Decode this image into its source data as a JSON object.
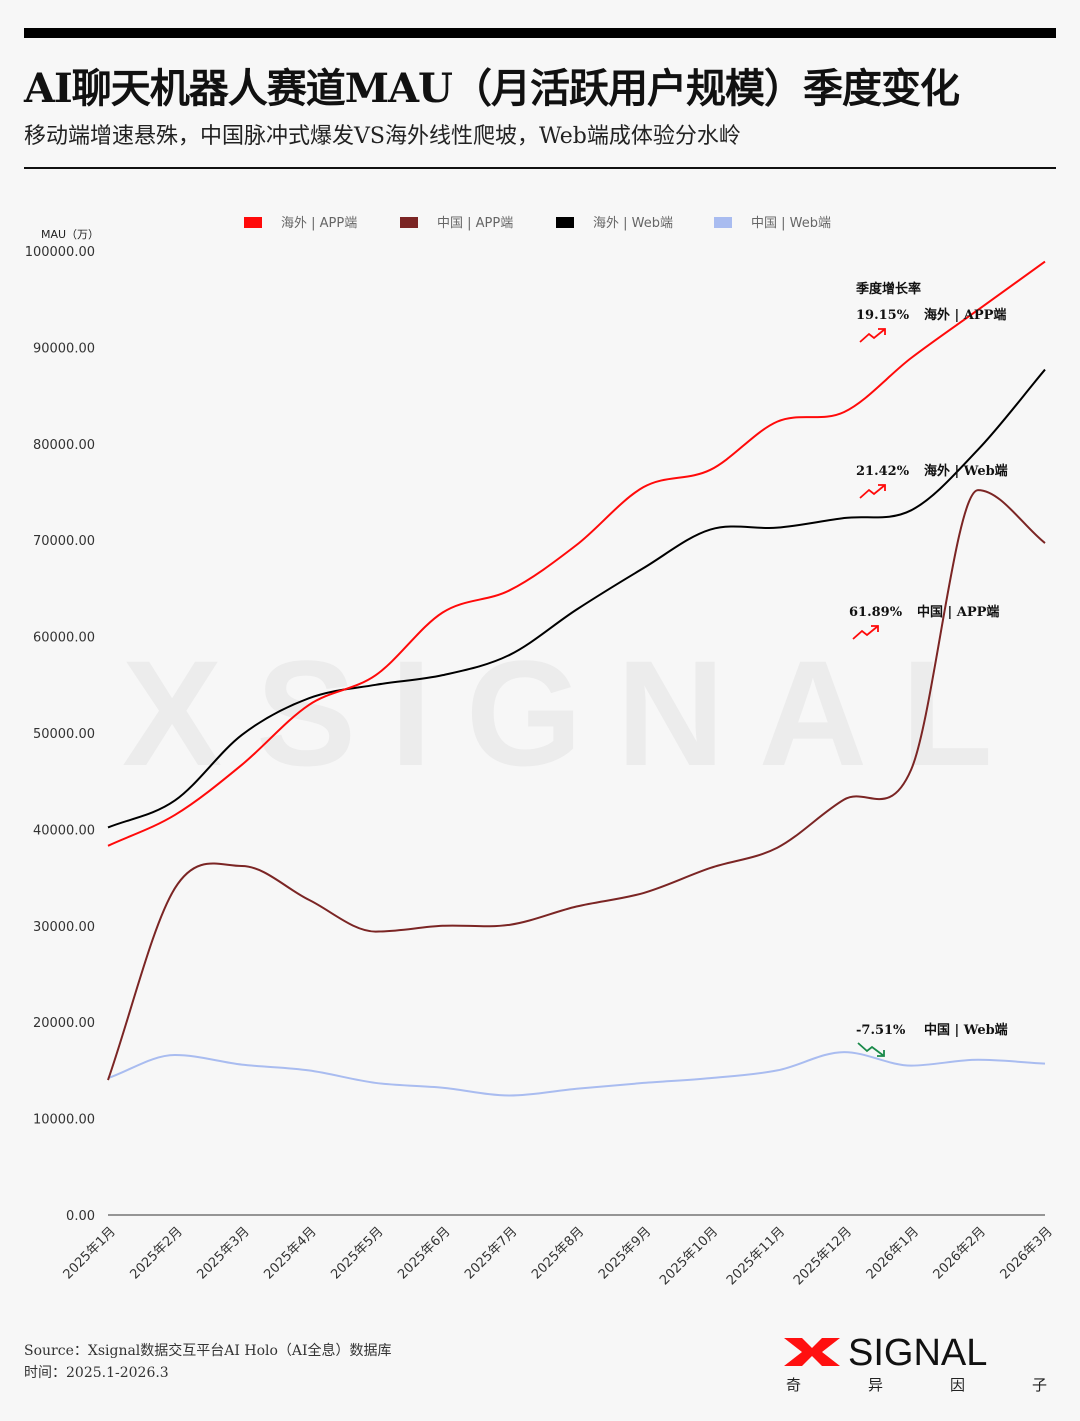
{
  "header": {
    "title": "AI聊天机器人赛道MAU（月活跃用户规模）季度变化",
    "subtitle": "移动端增速悬殊，中国脉冲式爆发VS海外线性爬坡，Web端成体验分水岭"
  },
  "chart_data": {
    "type": "line",
    "ylabel": "MAU（万）",
    "ylim": [
      0,
      100000
    ],
    "yticks": [
      "0.00",
      "10000.00",
      "20000.00",
      "30000.00",
      "40000.00",
      "50000.00",
      "60000.00",
      "70000.00",
      "80000.00",
      "90000.00",
      "100000.00"
    ],
    "ytick_values": [
      0,
      10000,
      20000,
      30000,
      40000,
      50000,
      60000,
      70000,
      80000,
      90000,
      100000
    ],
    "categories": [
      "2025年1月",
      "2025年2月",
      "2025年3月",
      "2025年4月",
      "2025年5月",
      "2025年6月",
      "2025年7月",
      "2025年8月",
      "2025年9月",
      "2025年10月",
      "2025年11月",
      "2025年12月",
      "2026年1月",
      "2026年2月",
      "2026年3月"
    ],
    "grid": false,
    "legend_position": "top",
    "series": [
      {
        "name": "海外 | APP端",
        "color": "#ff0a0a",
        "values": [
          38300,
          41500,
          46700,
          52900,
          56000,
          62500,
          64800,
          69500,
          75500,
          77300,
          82300,
          83300,
          88900,
          93900,
          98900
        ]
      },
      {
        "name": "中国 | APP端",
        "color": "#7b2524",
        "values": [
          14000,
          33900,
          36200,
          32700,
          29400,
          30000,
          30100,
          32000,
          33400,
          36000,
          38100,
          43100,
          46200,
          75200,
          69700
        ]
      },
      {
        "name": "海外 | Web端",
        "color": "#000000",
        "values": [
          40200,
          43000,
          49800,
          53600,
          55000,
          56000,
          58100,
          62800,
          67100,
          71100,
          71300,
          72300,
          73100,
          79400,
          87700
        ]
      },
      {
        "name": "中国 | Web端",
        "color": "#a9bcf0",
        "values": [
          14200,
          16600,
          15600,
          15000,
          13700,
          13200,
          12400,
          13100,
          13700,
          14200,
          15000,
          16900,
          15500,
          16100,
          15700
        ]
      }
    ],
    "annotations": {
      "heading": "季度增长率",
      "items": [
        {
          "rate": "19.15%",
          "label": "海外 | APP端",
          "trend": "up",
          "icon": "trend-up-icon",
          "color": "#ff0a0a"
        },
        {
          "rate": "21.42%",
          "label": "海外 | Web端",
          "trend": "up",
          "icon": "trend-up-icon",
          "color": "#ff0a0a"
        },
        {
          "rate": "61.89%",
          "label": "中国 | APP端",
          "trend": "up",
          "icon": "trend-up-icon",
          "color": "#ff0a0a"
        },
        {
          "rate": "-7.51%",
          "label": "中国 | Web端",
          "trend": "down",
          "icon": "trend-down-icon",
          "color": "#1a8a4a"
        }
      ]
    }
  },
  "watermark": "XSIGNAL",
  "footer": {
    "source": "Source：Xsignal数据交互平台AI Holo（AI全息）数据库",
    "time": "时间：2025.1-2026.3"
  },
  "logo": {
    "text": "SIGNAL",
    "subtitle_chars": [
      "奇",
      "异",
      "因",
      "子"
    ],
    "accent": "#ff1010"
  }
}
